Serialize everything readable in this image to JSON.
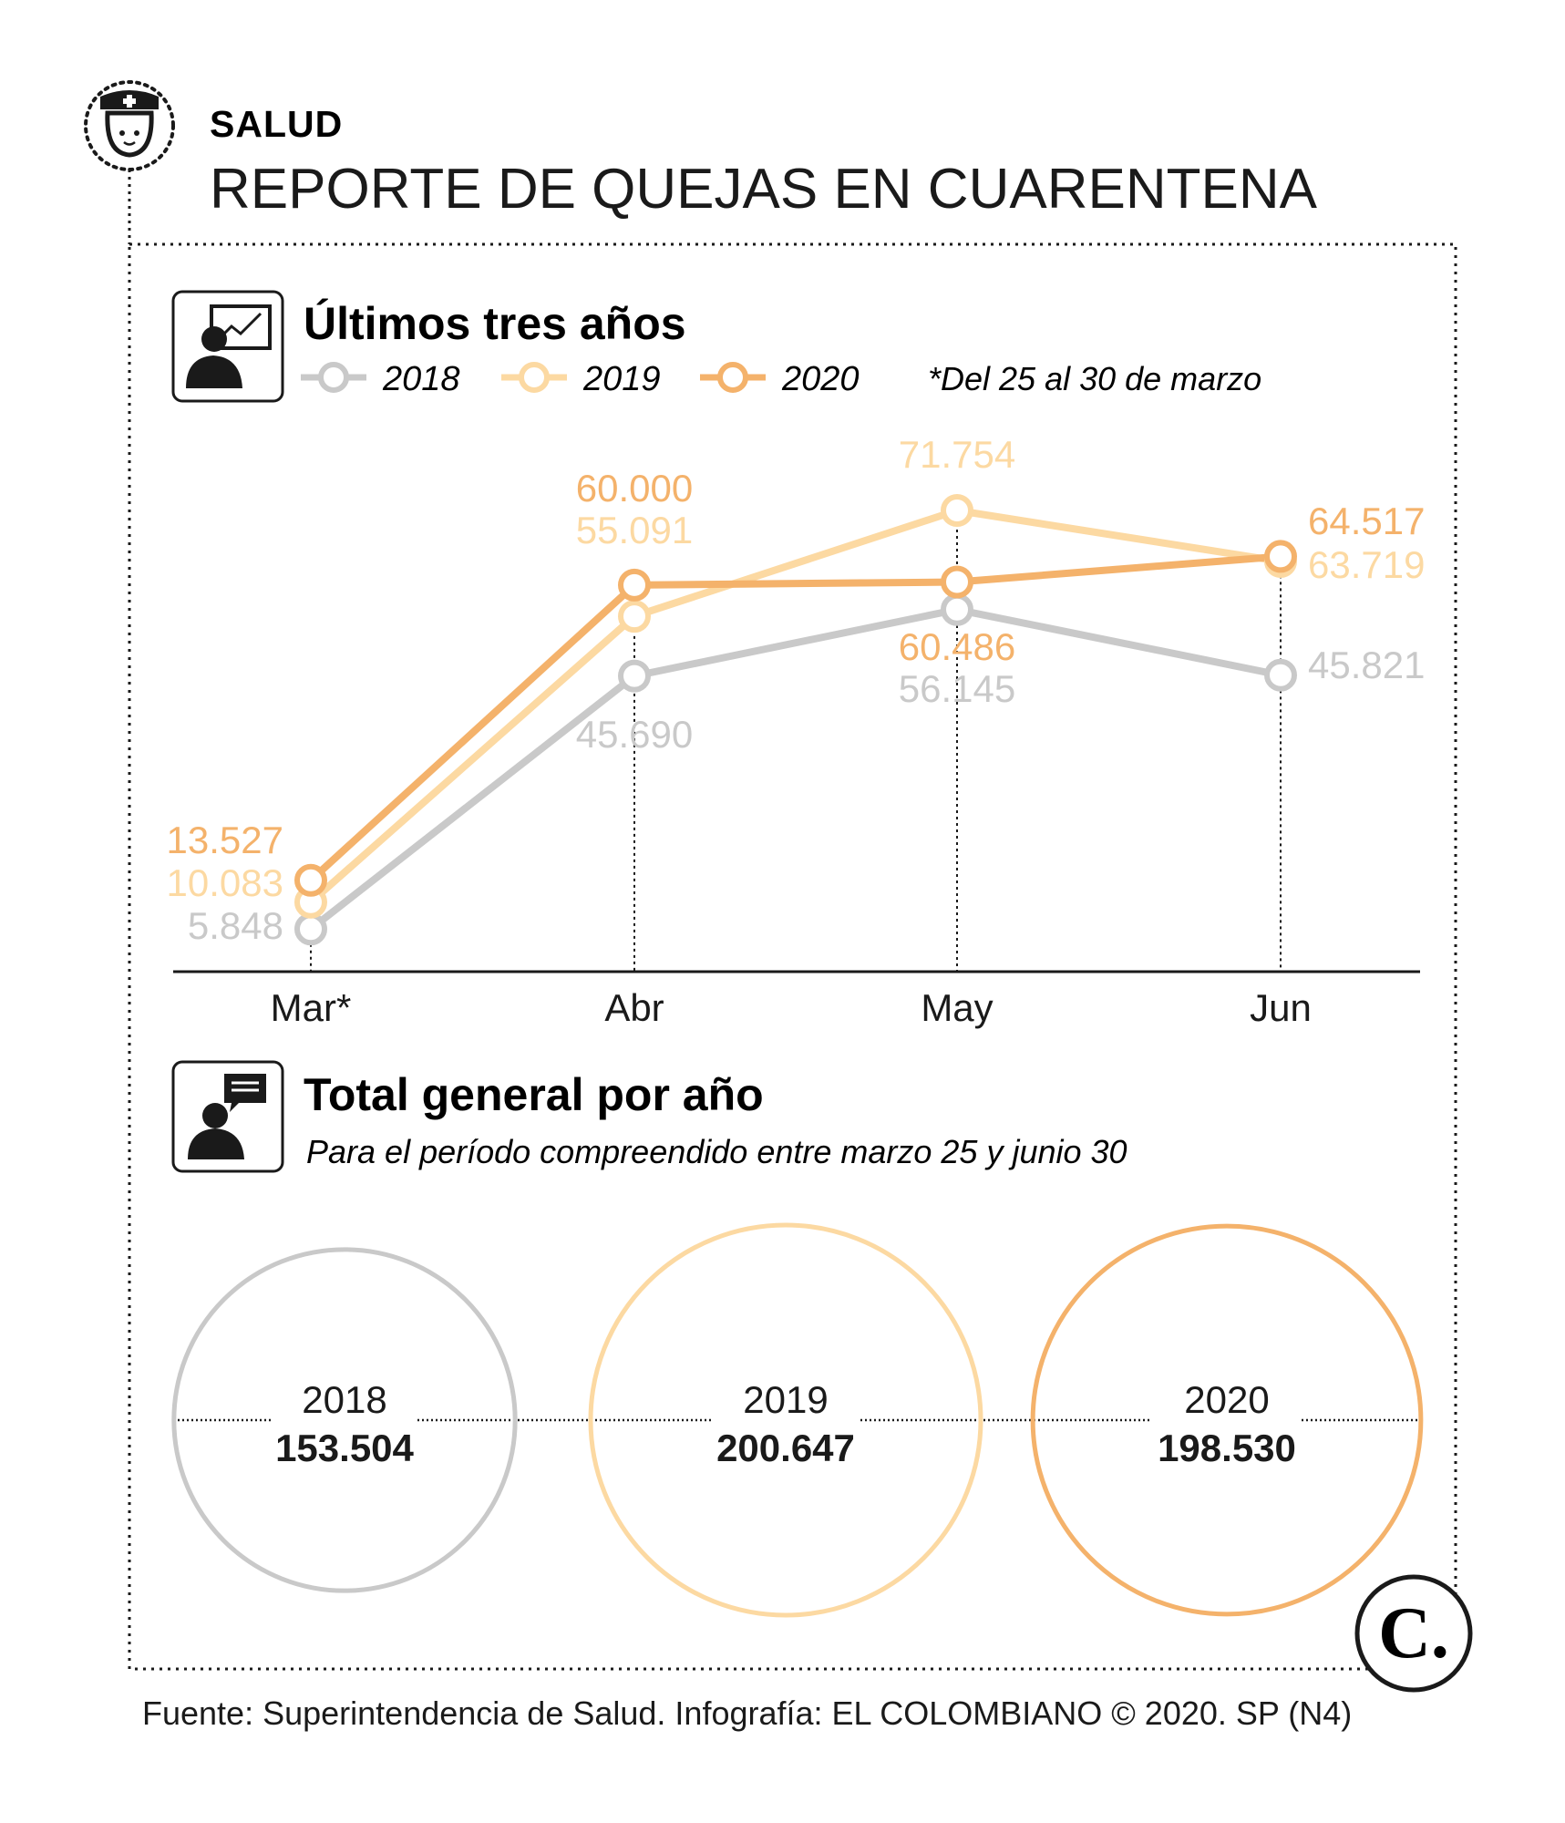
{
  "header": {
    "section": "SALUD",
    "title": "REPORTE DE QUEJAS EN CUARENTENA"
  },
  "chart_section": {
    "title": "Últimos tres años",
    "footnote": "*Del 25 al 30 de marzo",
    "legend": [
      "2018",
      "2019",
      "2020"
    ]
  },
  "chart_data": [
    {
      "type": "line",
      "title": "Últimos tres años",
      "categories": [
        "Mar*",
        "Abr",
        "May",
        "Jun"
      ],
      "series": [
        {
          "name": "2018",
          "values": [
            5848,
            45690,
            56145,
            45821
          ],
          "labels": [
            "5.848",
            "45.690",
            "56.145",
            "45.821"
          ],
          "color": "#c9c9c9"
        },
        {
          "name": "2019",
          "values": [
            10083,
            55091,
            71754,
            63719
          ],
          "labels": [
            "10.083",
            "55.091",
            "71.754",
            "63.719"
          ],
          "color": "#fcd9a2"
        },
        {
          "name": "2020",
          "values": [
            13527,
            60000,
            60486,
            64517
          ],
          "labels": [
            "13.527",
            "60.000",
            "60.486",
            "64.517"
          ],
          "color": "#f4b26b"
        }
      ],
      "legend_position": "top",
      "grid": false
    },
    {
      "type": "bubble",
      "title": "Total general por año",
      "categories": [
        "2018",
        "2019",
        "2020"
      ],
      "values": [
        153504,
        200647,
        198530
      ],
      "labels": [
        "153.504",
        "200.647",
        "198.530"
      ],
      "colors": [
        "#c9c9c9",
        "#fcd9a2",
        "#f4b26b"
      ]
    }
  ],
  "totals_section": {
    "title": "Total general por año",
    "subtitle": "Para el período compreendido entre marzo 25 y junio 30"
  },
  "logo": {
    "letter": "C."
  },
  "footer": {
    "source": "Fuente: Superintendencia de Salud. Infografía: EL COLOMBIANO © 2020. SP (N4)"
  },
  "icons": {
    "header": "nurse-icon",
    "chart": "presentation-icon",
    "totals": "speech-bubble-person-icon"
  }
}
